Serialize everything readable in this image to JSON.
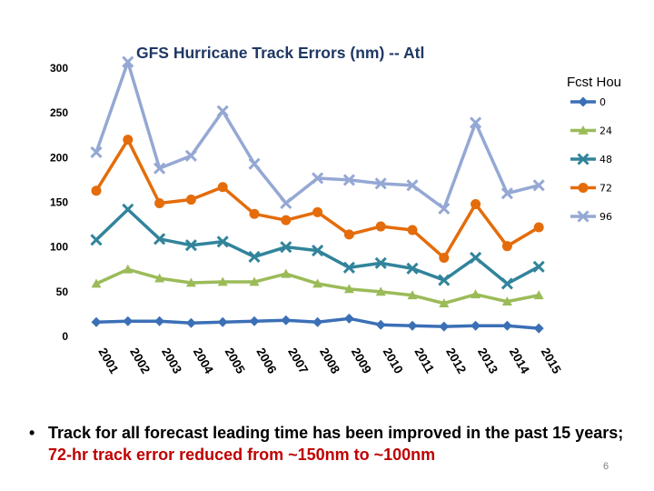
{
  "chart_data": {
    "type": "line",
    "title": "GFS Hurricane Track Errors (nm) -- Atl",
    "legend_title": "Fcst Hou",
    "xlabel": "",
    "ylabel": "",
    "ylim": [
      0,
      300
    ],
    "y_ticks": [
      "0",
      "50",
      "100",
      "150",
      "200",
      "250",
      "300"
    ],
    "categories": [
      "2001",
      "2002",
      "2003",
      "2004",
      "2005",
      "2006",
      "2007",
      "2008",
      "2009",
      "2010",
      "2011",
      "2012",
      "2013",
      "2014",
      "2015"
    ],
    "series": [
      {
        "name": "0",
        "color": "#3b6fb6",
        "marker": "diamond",
        "values": [
          16,
          17,
          17,
          15,
          16,
          17,
          18,
          16,
          20,
          13,
          12,
          11,
          12,
          12,
          9
        ]
      },
      {
        "name": "24",
        "color": "#9bbb59",
        "marker": "triangle",
        "values": [
          59,
          75,
          65,
          60,
          61,
          61,
          70,
          59,
          53,
          50,
          46,
          37,
          47,
          39,
          46
        ]
      },
      {
        "name": "48",
        "color": "#31849b",
        "marker": "x",
        "values": [
          108,
          142,
          109,
          102,
          106,
          89,
          100,
          96,
          77,
          82,
          76,
          63,
          88,
          59,
          78
        ]
      },
      {
        "name": "72",
        "color": "#e46c0a",
        "marker": "circle",
        "values": [
          163,
          220,
          149,
          153,
          167,
          137,
          130,
          139,
          114,
          123,
          119,
          88,
          148,
          101,
          122
        ]
      },
      {
        "name": "96",
        "color": "#95a8d4",
        "marker": "x",
        "values": [
          206,
          307,
          188,
          202,
          252,
          193,
          149,
          177,
          175,
          171,
          169,
          143,
          239,
          160,
          169
        ]
      }
    ]
  },
  "bullet": {
    "symbol": "•",
    "text_before": "Track for all forecast leading time has been improved in the past 15 years; ",
    "highlight": "72-hr track error reduced from ~150nm to ~100nm",
    "highlight_color": "#c00000"
  },
  "page_number": "6"
}
